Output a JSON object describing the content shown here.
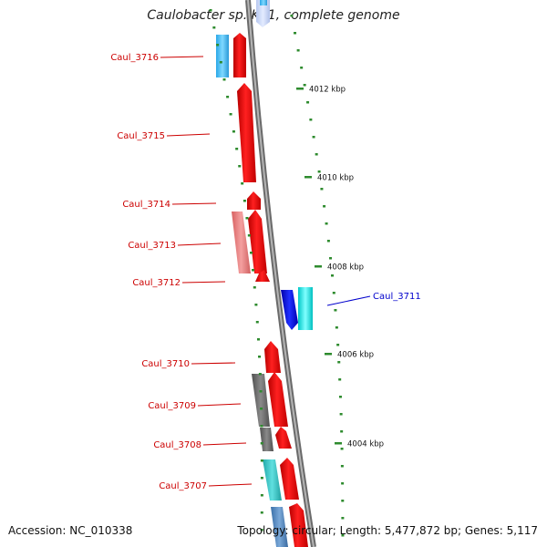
{
  "title": "Caulobacter sp. K31, complete genome",
  "footer": {
    "accession": "Accession: NC_010338",
    "summary": "Topology: circular; Length: 5,477,872 bp; Genes: 5,117"
  },
  "colors": {
    "backbone": "#808080",
    "tick": "#2e8b2e",
    "label_red": "#cc0000",
    "label_blue": "#0000cc"
  },
  "scale_labels": [
    "4012 kbp",
    "4010 kbp",
    "4008 kbp",
    "4006 kbp",
    "4004 kbp"
  ],
  "genes": [
    {
      "label": "Caul_3716",
      "strand": "+",
      "color": "#ff0000",
      "label_color": "#cc0000"
    },
    {
      "label": "Caul_3715",
      "strand": "+",
      "color": "#ff0000",
      "label_color": "#cc0000"
    },
    {
      "label": "Caul_3714",
      "strand": "+",
      "color": "#ff0000",
      "label_color": "#cc0000"
    },
    {
      "label": "Caul_3713",
      "strand": "+",
      "color": "#ff0000",
      "label_color": "#cc0000"
    },
    {
      "label": "Caul_3712",
      "strand": "+",
      "color": "#ff0000",
      "label_color": "#cc0000"
    },
    {
      "label": "Caul_3711",
      "strand": "-",
      "color": "#00e5e5",
      "label_color": "#0000cc"
    },
    {
      "label": "Caul_3710",
      "strand": "+",
      "color": "#ff0000",
      "label_color": "#cc0000"
    },
    {
      "label": "Caul_3709",
      "strand": "+",
      "color": "#ff0000",
      "label_color": "#cc0000"
    },
    {
      "label": "Caul_3708",
      "strand": "+",
      "color": "#ff0000",
      "label_color": "#cc0000"
    },
    {
      "label": "Caul_3707",
      "strand": "+",
      "color": "#ff0000",
      "label_color": "#cc0000"
    }
  ]
}
